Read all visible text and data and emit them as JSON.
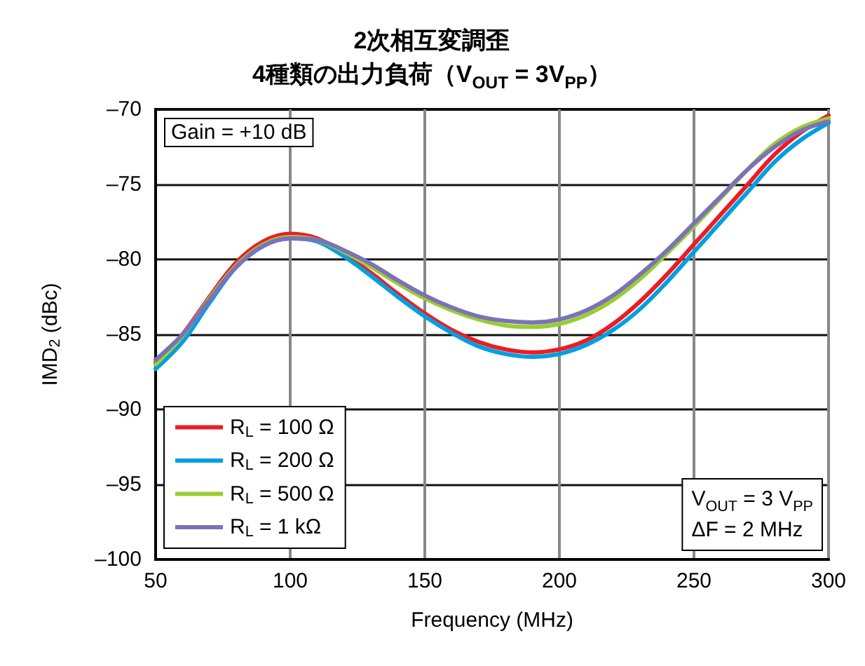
{
  "chart_data": {
    "type": "line",
    "title": "2次相互変調歪",
    "subtitle": "4種類の出力負荷（V$_{OUT}$ = 3V$_{PP}$）",
    "xlabel": "Frequency (MHz)",
    "ylabel": "IMD$_{2}$ (dBc)",
    "x": [
      50,
      60,
      70,
      80,
      90,
      100,
      110,
      120,
      130,
      140,
      150,
      160,
      170,
      180,
      190,
      200,
      210,
      220,
      230,
      240,
      250,
      260,
      270,
      280,
      290,
      300
    ],
    "series": [
      {
        "name": "R$_{L}$ = 100 Ω",
        "color": "#ed1c24",
        "values": [
          -86.9,
          -85.0,
          -82.5,
          -80.2,
          -78.8,
          -78.3,
          -78.6,
          -79.6,
          -80.9,
          -82.3,
          -83.6,
          -84.7,
          -85.5,
          -86.0,
          -86.2,
          -86.0,
          -85.4,
          -84.3,
          -82.8,
          -81.0,
          -79.0,
          -77.0,
          -75.0,
          -73.0,
          -71.5,
          -70.4
        ]
      },
      {
        "name": "R$_{L}$ = 200 Ω",
        "color": "#00a0e0",
        "values": [
          -87.3,
          -85.5,
          -82.9,
          -80.5,
          -79.1,
          -78.6,
          -78.8,
          -79.8,
          -81.1,
          -82.5,
          -83.8,
          -84.9,
          -85.8,
          -86.3,
          -86.5,
          -86.3,
          -85.7,
          -84.7,
          -83.3,
          -81.5,
          -79.5,
          -77.5,
          -75.5,
          -73.5,
          -72.0,
          -70.9
        ]
      },
      {
        "name": "R$_{L}$ = 500 Ω",
        "color": "#9acd32",
        "values": [
          -87.0,
          -85.1,
          -82.6,
          -80.4,
          -79.0,
          -78.5,
          -78.7,
          -79.5,
          -80.5,
          -81.6,
          -82.6,
          -83.4,
          -84.0,
          -84.4,
          -84.5,
          -84.3,
          -83.7,
          -82.7,
          -81.3,
          -79.6,
          -77.8,
          -75.9,
          -74.0,
          -72.3,
          -71.2,
          -70.6
        ]
      },
      {
        "name": "R$_{L}$ = 1 kΩ",
        "color": "#7b72b8",
        "values": [
          -86.7,
          -85.0,
          -82.7,
          -80.5,
          -79.1,
          -78.6,
          -78.7,
          -79.4,
          -80.3,
          -81.4,
          -82.4,
          -83.2,
          -83.8,
          -84.1,
          -84.2,
          -84.0,
          -83.4,
          -82.4,
          -81.0,
          -79.4,
          -77.6,
          -75.8,
          -74.0,
          -72.5,
          -71.4,
          -70.8
        ]
      }
    ],
    "annotations": [
      "Gain = +10 dB",
      "V$_{OUT}$ = 3 V$_{PP}$",
      "ΔF = 2 MHz"
    ],
    "xlim": [
      50,
      300
    ],
    "xticks": [
      50,
      100,
      150,
      200,
      250,
      300
    ],
    "ylim": [
      -100,
      -70
    ],
    "yticks": [
      {
        "value": -100,
        "label": "–100"
      },
      {
        "value": -95,
        "label": "–95"
      },
      {
        "value": -90,
        "label": "–90"
      },
      {
        "value": -85,
        "label": "–85"
      },
      {
        "value": -80,
        "label": "–80"
      },
      {
        "value": -75,
        "label": "–75"
      },
      {
        "value": -70,
        "label": "–70"
      }
    ],
    "grid": true,
    "legend": "bottom left",
    "marker": "none",
    "line_style": "solid"
  }
}
